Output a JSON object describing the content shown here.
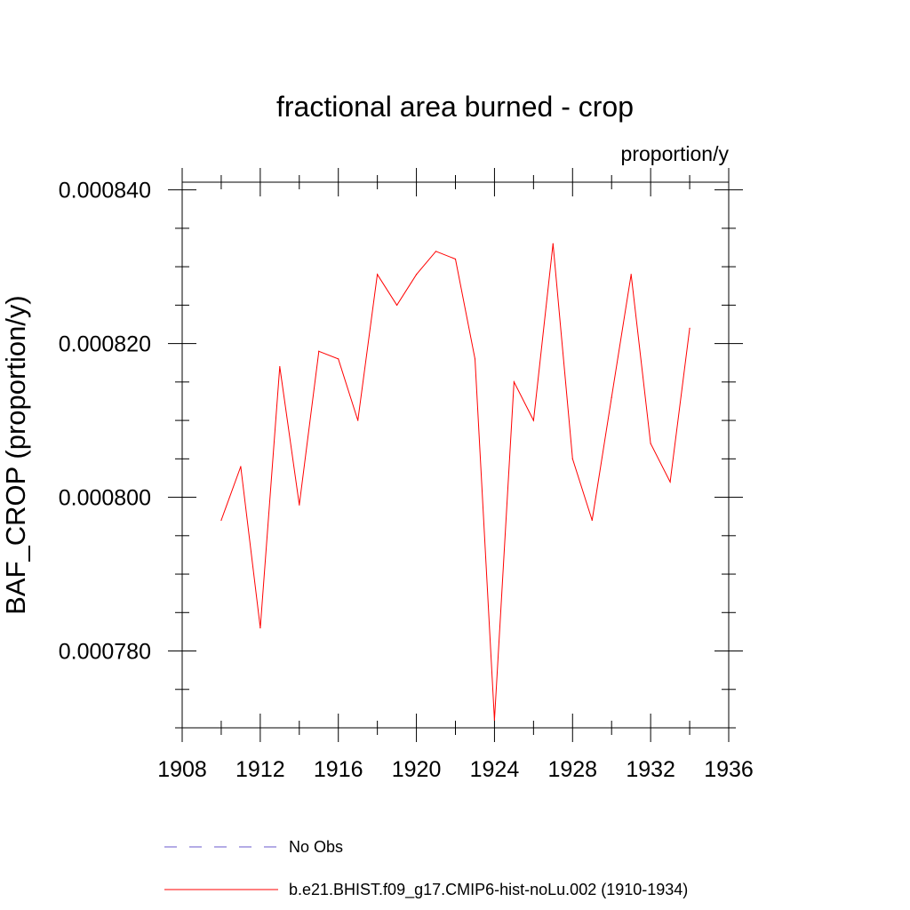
{
  "chart_data": {
    "type": "line",
    "title": "fractional area burned - crop",
    "units_label": "proportion/y",
    "ylabel": "BAF_CROP  (proportion/y)",
    "xlabel": "",
    "xlim": [
      1908,
      1936
    ],
    "ylim": [
      0.00077,
      0.000841
    ],
    "xticks": [
      1908,
      1912,
      1916,
      1920,
      1924,
      1928,
      1932,
      1936
    ],
    "yticks": [
      0.00078,
      0.0008,
      0.00082,
      0.00084
    ],
    "ytick_labels": [
      "0.000780",
      "0.000800",
      "0.000820",
      "0.000840"
    ],
    "grid": false,
    "series": [
      {
        "name": "b.e21.BHIST.f09_g17.CMIP6-hist-noLu.002 (1910-1934)",
        "color": "#ff0000",
        "x": [
          1910,
          1911,
          1912,
          1913,
          1914,
          1915,
          1916,
          1917,
          1918,
          1919,
          1920,
          1921,
          1922,
          1923,
          1924,
          1925,
          1926,
          1927,
          1928,
          1929,
          1930,
          1931,
          1932,
          1933,
          1934
        ],
        "y": [
          0.000797,
          0.000804,
          0.000783,
          0.000817,
          0.000799,
          0.000819,
          0.000818,
          0.00081,
          0.000829,
          0.000825,
          0.000829,
          0.000832,
          0.000831,
          0.000818,
          0.000771,
          0.000815,
          0.00081,
          0.000833,
          0.000805,
          0.000797,
          0.000813,
          0.000829,
          0.000807,
          0.000802,
          0.000822
        ]
      }
    ],
    "legend": {
      "placement": "bottom",
      "entries": [
        {
          "label": "No Obs",
          "style": "dashed",
          "color": "#6a5acd"
        },
        {
          "label": "b.e21.BHIST.f09_g17.CMIP6-hist-noLu.002 (1910-1934)",
          "style": "solid",
          "color": "#ff0000"
        }
      ]
    }
  }
}
